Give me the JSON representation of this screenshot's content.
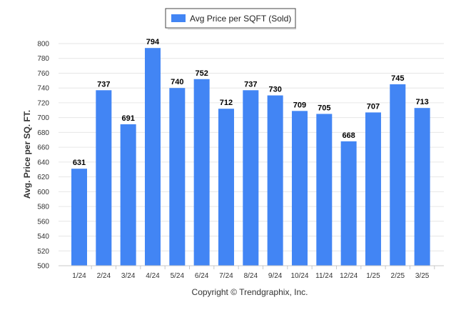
{
  "chart_data": {
    "type": "bar",
    "categories": [
      "1/24",
      "2/24",
      "3/24",
      "4/24",
      "5/24",
      "6/24",
      "7/24",
      "8/24",
      "9/24",
      "10/24",
      "11/24",
      "12/24",
      "1/25",
      "2/25",
      "3/25"
    ],
    "series": [
      {
        "name": "Avg Price per SQFT (Sold)",
        "values": [
          631,
          737,
          691,
          794,
          740,
          752,
          712,
          737,
          730,
          709,
          705,
          668,
          707,
          745,
          713
        ],
        "color": "#4285f4"
      }
    ],
    "ylabel": "Avg. Price per SQ. FT.",
    "xlabel": "",
    "ylim": [
      500,
      800
    ],
    "yticks": [
      500,
      520,
      540,
      560,
      580,
      600,
      620,
      640,
      660,
      680,
      700,
      720,
      740,
      760,
      780,
      800
    ],
    "grid": true,
    "legend_position": "top-center",
    "data_labels": true
  },
  "legend": {
    "label": "Avg Price per SQFT (Sold)",
    "color": "#4285f4"
  },
  "footer": {
    "copyright": "Copyright © Trendgraphix, Inc."
  }
}
